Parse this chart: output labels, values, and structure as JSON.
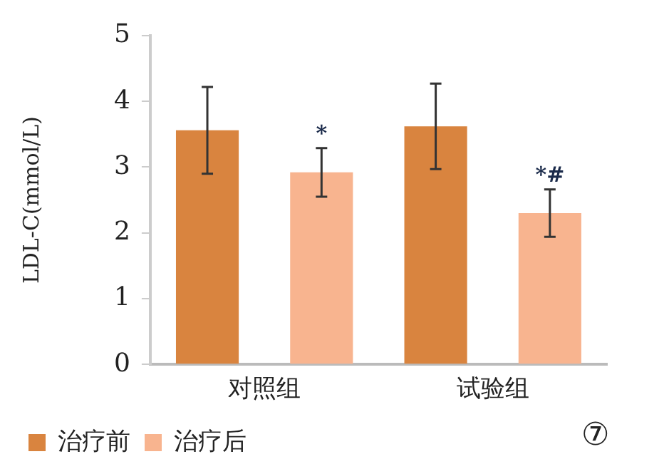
{
  "chart_data": {
    "type": "bar",
    "ylabel": "LDL-C(mmol/L)",
    "categories": [
      "对照组",
      "试验组"
    ],
    "series": [
      {
        "name": "治疗前",
        "color": "#d9843f",
        "values": [
          3.56,
          3.62
        ],
        "errors": [
          0.66,
          0.65
        ]
      },
      {
        "name": "治疗后",
        "color": "#f8b48f",
        "values": [
          2.92,
          2.3
        ],
        "errors": [
          0.37,
          0.36
        ]
      }
    ],
    "ylim": [
      0,
      5
    ],
    "yticks": [
      0,
      1,
      2,
      3,
      4,
      5
    ],
    "grid": false,
    "legend": "bottom",
    "annotations": [
      "*",
      "*#",
      "⑦"
    ]
  }
}
